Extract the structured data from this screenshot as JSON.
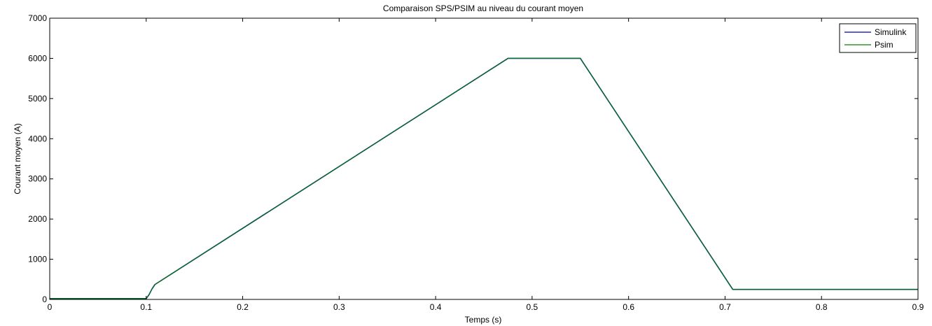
{
  "chart_data": {
    "type": "line",
    "title": "Comparaison SPS/PSIM au niveau du courant moyen",
    "xlabel": "Temps (s)",
    "ylabel": "Courant moyen (A)",
    "xlim": [
      0,
      0.9
    ],
    "ylim": [
      0,
      7000
    ],
    "xticks": [
      0,
      0.1,
      0.2,
      0.3,
      0.4,
      0.5,
      0.6,
      0.7,
      0.8,
      0.9
    ],
    "xtick_labels": [
      "0",
      "0.1",
      "0.2",
      "0.3",
      "0.4",
      "0.5",
      "0.6",
      "0.7",
      "0.8",
      "0.9"
    ],
    "yticks": [
      0,
      1000,
      2000,
      3000,
      4000,
      5000,
      6000,
      7000
    ],
    "ytick_labels": [
      "0",
      "1000",
      "2000",
      "3000",
      "4000",
      "5000",
      "6000",
      "7000"
    ],
    "grid": false,
    "legend_position": "top-right",
    "series": [
      {
        "name": "Simulink",
        "color": "#0000aa",
        "x": [
          0,
          0.1,
          0.103,
          0.106,
          0.109,
          0.475,
          0.55,
          0.708,
          0.9
        ],
        "y": [
          20,
          20,
          120,
          260,
          370,
          6000,
          6000,
          250,
          250
        ]
      },
      {
        "name": "Psim",
        "color": "#008000",
        "x": [
          0,
          0.1,
          0.103,
          0.106,
          0.109,
          0.475,
          0.55,
          0.708,
          0.9
        ],
        "y": [
          20,
          20,
          120,
          260,
          370,
          6000,
          6000,
          250,
          250
        ]
      }
    ]
  }
}
